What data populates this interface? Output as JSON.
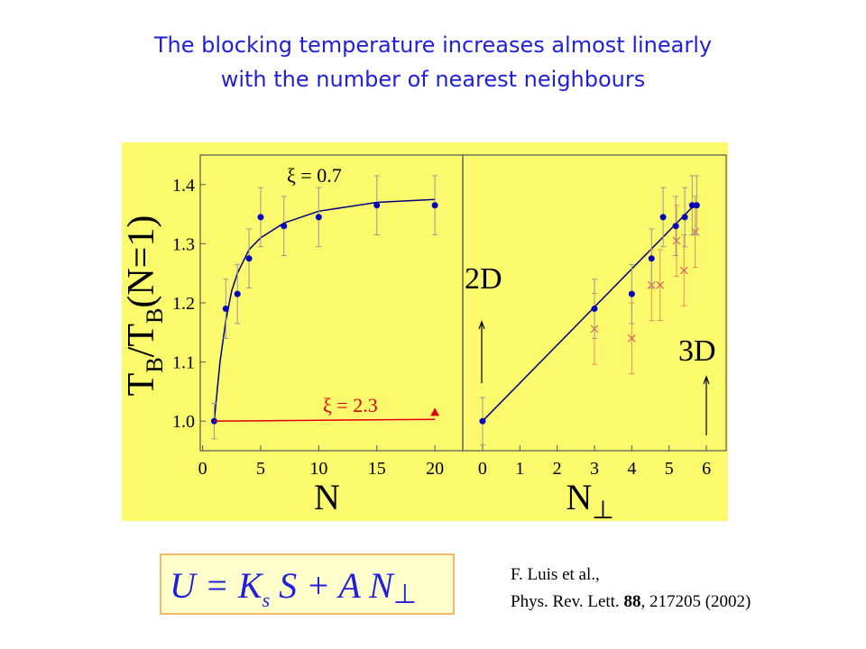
{
  "title": [
    "The blocking temperature increases almost linearly",
    "with the number of nearest neighbours"
  ],
  "chart_data": [
    {
      "type": "scatter",
      "xlabel": "N",
      "ylabel_parts": [
        "T",
        "B",
        "/T",
        "B",
        "(N=1)"
      ],
      "xlim": [
        -0.2,
        22.4
      ],
      "ylim": [
        0.95,
        1.45
      ],
      "xticks": [
        0,
        5,
        10,
        15,
        20
      ],
      "yticks": [
        {
          "value": 1.0,
          "label": "1.0"
        },
        1.1,
        1.2,
        1.3,
        1.4
      ],
      "annotations": [
        "ξ = 0.7",
        "ξ = 2.3"
      ],
      "series": [
        {
          "marker": "line",
          "color": "#000080",
          "x": [
            1,
            1.5,
            2,
            2.5,
            3,
            4,
            5,
            7,
            10,
            15,
            20
          ],
          "values": [
            1.0,
            1.1,
            1.17,
            1.22,
            1.25,
            1.29,
            1.31,
            1.335,
            1.355,
            1.37,
            1.375
          ]
        },
        {
          "marker": "circle",
          "color": "#0000c0",
          "x": [
            1,
            2,
            3,
            4,
            5,
            7,
            10,
            15,
            20
          ],
          "values": [
            1.0,
            1.19,
            1.215,
            1.275,
            1.345,
            1.33,
            1.345,
            1.365,
            1.365
          ],
          "errors": [
            0.03,
            0.05,
            0.05,
            0.05,
            0.05,
            0.05,
            0.05,
            0.05,
            0.05
          ]
        },
        {
          "marker": "line",
          "color": "#e00000",
          "x": [
            1,
            20
          ],
          "values": [
            1.0,
            1.003
          ]
        },
        {
          "marker": "triangle",
          "color": "#e00000",
          "x": [
            20
          ],
          "values": [
            1.015
          ]
        }
      ]
    },
    {
      "type": "scatter",
      "xlabel_parts": [
        "N",
        "⊥"
      ],
      "xlim": [
        -0.53,
        6.53
      ],
      "ylim": [
        0.95,
        1.45
      ],
      "xticks": [
        0,
        1,
        2,
        3,
        4,
        5,
        6
      ],
      "annotations": [
        "2D",
        "3D"
      ],
      "series": [
        {
          "marker": "line",
          "color": "#000080",
          "x": [
            0,
            5.75
          ],
          "values": [
            1.0,
            1.37
          ]
        },
        {
          "marker": "cross",
          "color": "#e06060",
          "x": [
            3,
            4,
            4.53,
            4.76,
            5.2,
            5.4,
            5.7
          ],
          "values": [
            1.156,
            1.14,
            1.23,
            1.23,
            1.305,
            1.255,
            1.32
          ],
          "errors": [
            0.06,
            0.06,
            0.06,
            0.06,
            0.06,
            0.06,
            0.06
          ]
        },
        {
          "marker": "circle",
          "color": "#0000c0",
          "x": [
            0,
            3,
            4,
            4.53,
            4.84,
            5.18,
            5.42,
            5.62,
            5.74
          ],
          "values": [
            1.0,
            1.19,
            1.215,
            1.275,
            1.345,
            1.33,
            1.345,
            1.365,
            1.365
          ],
          "errors": [
            0.04,
            0.05,
            0.05,
            0.05,
            0.05,
            0.05,
            0.05,
            0.05,
            0.05
          ]
        }
      ]
    }
  ],
  "formula_parts": [
    "U = K",
    "s",
    " S + A N",
    "⊥"
  ],
  "citation": {
    "line1": "F. Luis et al.,",
    "line2_parts": [
      "Phys. Rev. Lett. ",
      "88",
      ", 217205 (2002)"
    ]
  }
}
